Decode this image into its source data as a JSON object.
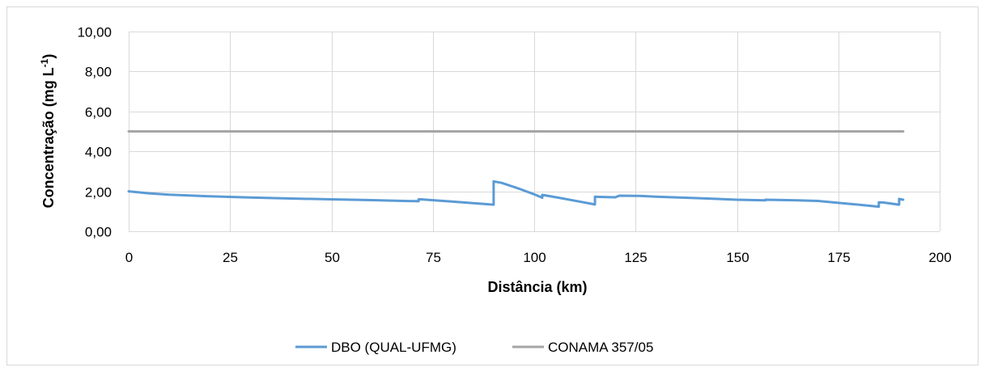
{
  "chart_data": {
    "type": "line",
    "xlabel": "Distância (km)",
    "ylabel": {
      "main": "Concentração (mg L",
      "superscript": "-1",
      "close": ")"
    },
    "xlim": [
      0,
      200
    ],
    "ylim": [
      0,
      10
    ],
    "x_ticks": [
      "0",
      "25",
      "50",
      "75",
      "100",
      "125",
      "150",
      "175",
      "200"
    ],
    "y_ticks": [
      "0,00",
      "2,00",
      "4,00",
      "6,00",
      "8,00",
      "10,00"
    ],
    "grid": true,
    "legend_position": "bottom",
    "series": [
      {
        "name": "DBO (QUAL-UFMG)",
        "color": "#5b9bd5",
        "x": [
          0,
          2,
          5,
          10,
          20,
          30,
          40,
          50,
          60,
          71.5,
          71.5,
          72,
          80,
          90,
          90,
          92,
          96,
          100,
          102,
          102,
          106,
          110,
          115,
          115,
          116,
          120,
          120,
          121,
          125,
          126,
          130,
          140,
          150,
          157,
          157,
          165,
          170,
          175,
          180,
          185,
          185,
          186,
          190,
          190,
          191
        ],
        "y": [
          2.0,
          1.96,
          1.9,
          1.83,
          1.75,
          1.69,
          1.64,
          1.6,
          1.56,
          1.5,
          1.6,
          1.6,
          1.48,
          1.33,
          2.5,
          2.42,
          2.15,
          1.85,
          1.68,
          1.82,
          1.68,
          1.53,
          1.34,
          1.73,
          1.72,
          1.7,
          1.7,
          1.78,
          1.77,
          1.77,
          1.73,
          1.66,
          1.58,
          1.55,
          1.58,
          1.55,
          1.52,
          1.42,
          1.33,
          1.23,
          1.45,
          1.44,
          1.33,
          1.62,
          1.58
        ]
      },
      {
        "name": "CONAMA 357/05",
        "color": "#a5a5a5",
        "x": [
          0,
          191
        ],
        "y": [
          5.0,
          5.0
        ]
      }
    ]
  }
}
